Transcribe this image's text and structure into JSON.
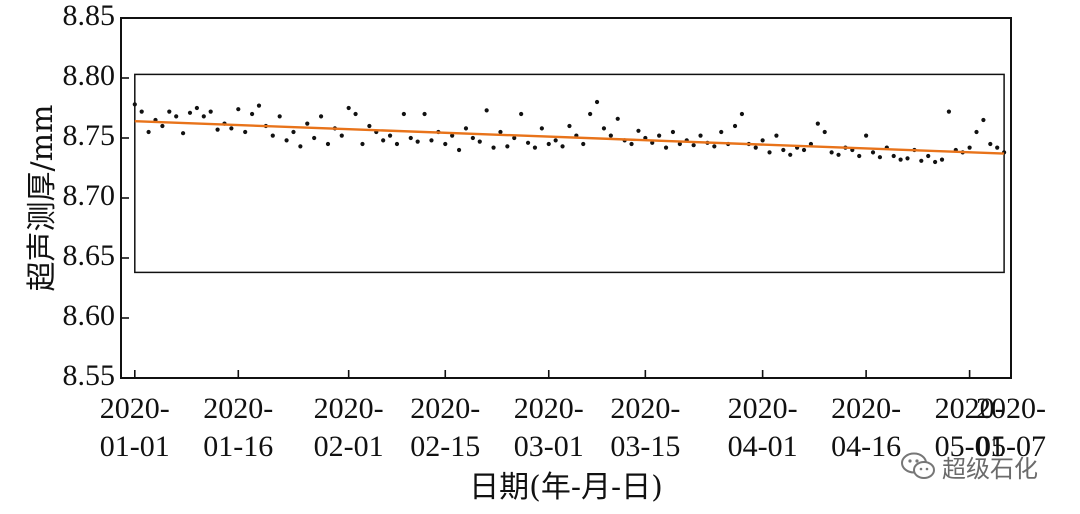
{
  "chart_data": {
    "type": "scatter",
    "ylabel": "超声测厚/mm",
    "xlabel": "日期(年-月-日)",
    "ylim": [
      8.55,
      8.85
    ],
    "y_ticks": [
      "8.55",
      "8.60",
      "8.65",
      "8.70",
      "8.75",
      "8.80",
      "8.85"
    ],
    "xlim": [
      "2019-12-30",
      "2020-05-07"
    ],
    "x_ticks": [
      {
        "date": "2020-01-01",
        "line1": "2020-",
        "line2": "01-01"
      },
      {
        "date": "2020-01-16",
        "line1": "2020-",
        "line2": "01-16"
      },
      {
        "date": "2020-02-01",
        "line1": "2020-",
        "line2": "02-01"
      },
      {
        "date": "2020-02-15",
        "line1": "2020-",
        "line2": "02-15"
      },
      {
        "date": "2020-03-01",
        "line1": "2020-",
        "line2": "03-01"
      },
      {
        "date": "2020-03-15",
        "line1": "2020-",
        "line2": "03-15"
      },
      {
        "date": "2020-04-01",
        "line1": "2020-",
        "line2": "04-01"
      },
      {
        "date": "2020-04-16",
        "line1": "2020-",
        "line2": "04-16"
      },
      {
        "date": "2020-05-01",
        "line1": "2020-",
        "line2": "05-01"
      },
      {
        "date": "2020-05-07",
        "line1": "2020-",
        "line2": "05-07"
      }
    ],
    "trend_line": {
      "color": "#e8731a",
      "x": [
        "2020-01-01",
        "2020-05-06"
      ],
      "y": [
        8.764,
        8.737
      ]
    },
    "box": {
      "x": [
        "2020-01-01",
        "2020-05-06"
      ],
      "y": [
        8.638,
        8.803
      ]
    },
    "points_color": "#111111",
    "series": [
      {
        "x": [
          "2020-01-01",
          "2020-01-02",
          "2020-01-03",
          "2020-01-04",
          "2020-01-05",
          "2020-01-06",
          "2020-01-07",
          "2020-01-08",
          "2020-01-09",
          "2020-01-10",
          "2020-01-11",
          "2020-01-12",
          "2020-01-13",
          "2020-01-14",
          "2020-01-15",
          "2020-01-16",
          "2020-01-17",
          "2020-01-18",
          "2020-01-19",
          "2020-01-20",
          "2020-01-21",
          "2020-01-22",
          "2020-01-23",
          "2020-01-24",
          "2020-01-25",
          "2020-01-26",
          "2020-01-27",
          "2020-01-28",
          "2020-01-29",
          "2020-01-30",
          "2020-01-31",
          "2020-02-01",
          "2020-02-02",
          "2020-02-03",
          "2020-02-04",
          "2020-02-05",
          "2020-02-06",
          "2020-02-07",
          "2020-02-08",
          "2020-02-09",
          "2020-02-10",
          "2020-02-11",
          "2020-02-12",
          "2020-02-13",
          "2020-02-14",
          "2020-02-15",
          "2020-02-16",
          "2020-02-17",
          "2020-02-18",
          "2020-02-19",
          "2020-02-20",
          "2020-02-21",
          "2020-02-22",
          "2020-02-23",
          "2020-02-24",
          "2020-02-25",
          "2020-02-26",
          "2020-02-27",
          "2020-02-28",
          "2020-02-29",
          "2020-03-01",
          "2020-03-02",
          "2020-03-03",
          "2020-03-04",
          "2020-03-05",
          "2020-03-06",
          "2020-03-07",
          "2020-03-08",
          "2020-03-09",
          "2020-03-10",
          "2020-03-11",
          "2020-03-12",
          "2020-03-13",
          "2020-03-14",
          "2020-03-15",
          "2020-03-16",
          "2020-03-17",
          "2020-03-18",
          "2020-03-19",
          "2020-03-20",
          "2020-03-21",
          "2020-03-22",
          "2020-03-23",
          "2020-03-24",
          "2020-03-25",
          "2020-03-26",
          "2020-03-27",
          "2020-03-28",
          "2020-03-29",
          "2020-03-30",
          "2020-03-31",
          "2020-04-01",
          "2020-04-02",
          "2020-04-03",
          "2020-04-04",
          "2020-04-05",
          "2020-04-06",
          "2020-04-07",
          "2020-04-08",
          "2020-04-09",
          "2020-04-10",
          "2020-04-11",
          "2020-04-12",
          "2020-04-13",
          "2020-04-14",
          "2020-04-15",
          "2020-04-16",
          "2020-04-17",
          "2020-04-18",
          "2020-04-19",
          "2020-04-20",
          "2020-04-21",
          "2020-04-22",
          "2020-04-23",
          "2020-04-24",
          "2020-04-25",
          "2020-04-26",
          "2020-04-27",
          "2020-04-28",
          "2020-04-29",
          "2020-04-30",
          "2020-05-01",
          "2020-05-02",
          "2020-05-03",
          "2020-05-04",
          "2020-05-05",
          "2020-05-06"
        ],
        "values": [
          8.778,
          8.772,
          8.755,
          8.765,
          8.76,
          8.772,
          8.768,
          8.754,
          8.771,
          8.775,
          8.768,
          8.772,
          8.757,
          8.762,
          8.758,
          8.774,
          8.755,
          8.77,
          8.777,
          8.76,
          8.752,
          8.768,
          8.748,
          8.755,
          8.743,
          8.762,
          8.75,
          8.768,
          8.745,
          8.758,
          8.752,
          8.775,
          8.77,
          8.745,
          8.76,
          8.755,
          8.748,
          8.752,
          8.745,
          8.77,
          8.75,
          8.747,
          8.77,
          8.748,
          8.755,
          8.745,
          8.752,
          8.74,
          8.758,
          8.75,
          8.747,
          8.773,
          8.742,
          8.755,
          8.743,
          8.75,
          8.77,
          8.746,
          8.742,
          8.758,
          8.745,
          8.748,
          8.743,
          8.76,
          8.752,
          8.745,
          8.77,
          8.78,
          8.758,
          8.752,
          8.766,
          8.748,
          8.745,
          8.756,
          8.75,
          8.746,
          8.752,
          8.742,
          8.755,
          8.745,
          8.748,
          8.744,
          8.752,
          8.746,
          8.743,
          8.755,
          8.745,
          8.76,
          8.77,
          8.745,
          8.742,
          8.748,
          8.738,
          8.752,
          8.74,
          8.736,
          8.742,
          8.74,
          8.745,
          8.762,
          8.755,
          8.738,
          8.736,
          8.742,
          8.74,
          8.735,
          8.752,
          8.738,
          8.734,
          8.742,
          8.735,
          8.732,
          8.733,
          8.74,
          8.731,
          8.735,
          8.73,
          8.732,
          8.772,
          8.74,
          8.738,
          8.742,
          8.755,
          8.765,
          8.745,
          8.742,
          8.738
        ]
      }
    ]
  },
  "watermark": {
    "icon": "wechat-icon",
    "text": "超级石化"
  }
}
